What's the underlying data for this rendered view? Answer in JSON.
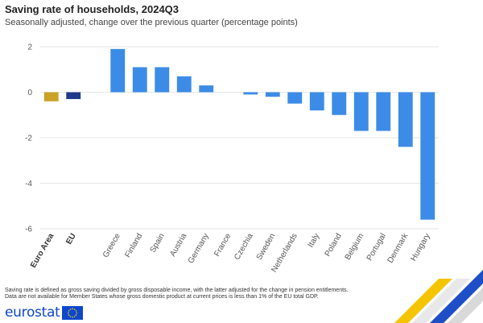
{
  "header": {
    "title": "Saving rate of households, 2024Q3",
    "subtitle": "Seasonally adjusted, change over the previous quarter (percentage points)"
  },
  "chart_data": {
    "type": "bar",
    "categories": [
      "Euro Area",
      "EU",
      "",
      "Greece",
      "Finland",
      "Spain",
      "Austria",
      "Germany",
      "France",
      "Czechia",
      "Sweden",
      "Netherlands",
      "Italy",
      "Poland",
      "Belgium",
      "Portugal",
      "Denmark",
      "Hungary"
    ],
    "values": [
      -0.4,
      -0.3,
      null,
      1.9,
      1.1,
      1.1,
      0.7,
      0.3,
      0.0,
      -0.1,
      -0.2,
      -0.5,
      -0.8,
      -1.0,
      -1.7,
      -1.7,
      -2.4,
      -5.6
    ],
    "bold_categories": [
      "Euro Area",
      "EU"
    ],
    "bar_colors": {
      "Euro Area": "#c9a227",
      "EU": "#1d3a8a",
      "default": "#3c8ce7"
    },
    "ylim": [
      -6,
      2
    ],
    "yticks": [
      2,
      0,
      -2,
      -4,
      -6
    ],
    "grid": true,
    "xlabel": "",
    "ylabel": ""
  },
  "footnote": {
    "line1": "Saving rate is defined as gross saving divided by gross disposable income, with the latter adjusted for the change in pension entitlements.",
    "line2": "Data are not available for Member States whose gross domestic product at current prices is less than 1% of the EU total GDP."
  },
  "logo": {
    "text": "eurostat",
    "icon": "eu-flag-icon"
  }
}
